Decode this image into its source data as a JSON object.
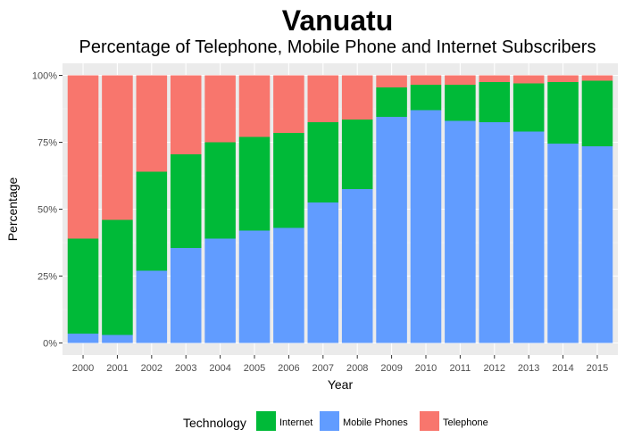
{
  "chart_data": {
    "type": "bar",
    "stacked": true,
    "title": "Vanuatu",
    "subtitle": "Percentage of Telephone, Mobile Phone and Internet Subscribers",
    "xlabel": "Year",
    "ylabel": "Percentage",
    "ylim": [
      0,
      100
    ],
    "yticks": [
      "0%",
      "25%",
      "50%",
      "75%",
      "100%"
    ],
    "yticks_values": [
      0,
      25,
      50,
      75,
      100
    ],
    "categories": [
      "2000",
      "2001",
      "2002",
      "2003",
      "2004",
      "2005",
      "2006",
      "2007",
      "2008",
      "2009",
      "2010",
      "2011",
      "2012",
      "2013",
      "2014",
      "2015"
    ],
    "series": [
      {
        "name": "Mobile Phones",
        "color": "#619CFF",
        "values": [
          3.5,
          3,
          27,
          35.5,
          39,
          42,
          43,
          52.5,
          57.5,
          84.5,
          87,
          83,
          82.5,
          79,
          74.5,
          73.5
        ]
      },
      {
        "name": "Internet",
        "color": "#00BA38",
        "values": [
          35.5,
          43,
          37,
          35,
          36,
          35,
          35.5,
          30,
          26,
          11,
          9.5,
          13.5,
          15,
          18,
          23,
          24.5
        ]
      },
      {
        "name": "Telephone",
        "color": "#F8766D",
        "values": [
          61,
          54,
          36,
          29.5,
          25,
          23,
          21.5,
          17.5,
          16.5,
          4.5,
          3.5,
          3.5,
          2.5,
          3,
          2.5,
          2
        ]
      }
    ],
    "legend": {
      "title": "Technology",
      "position": "bottom",
      "entries": [
        {
          "label": "Internet",
          "color": "#00BA38"
        },
        {
          "label": "Mobile Phones",
          "color": "#619CFF"
        },
        {
          "label": "Telephone",
          "color": "#F8766D"
        }
      ]
    },
    "grid": true
  }
}
